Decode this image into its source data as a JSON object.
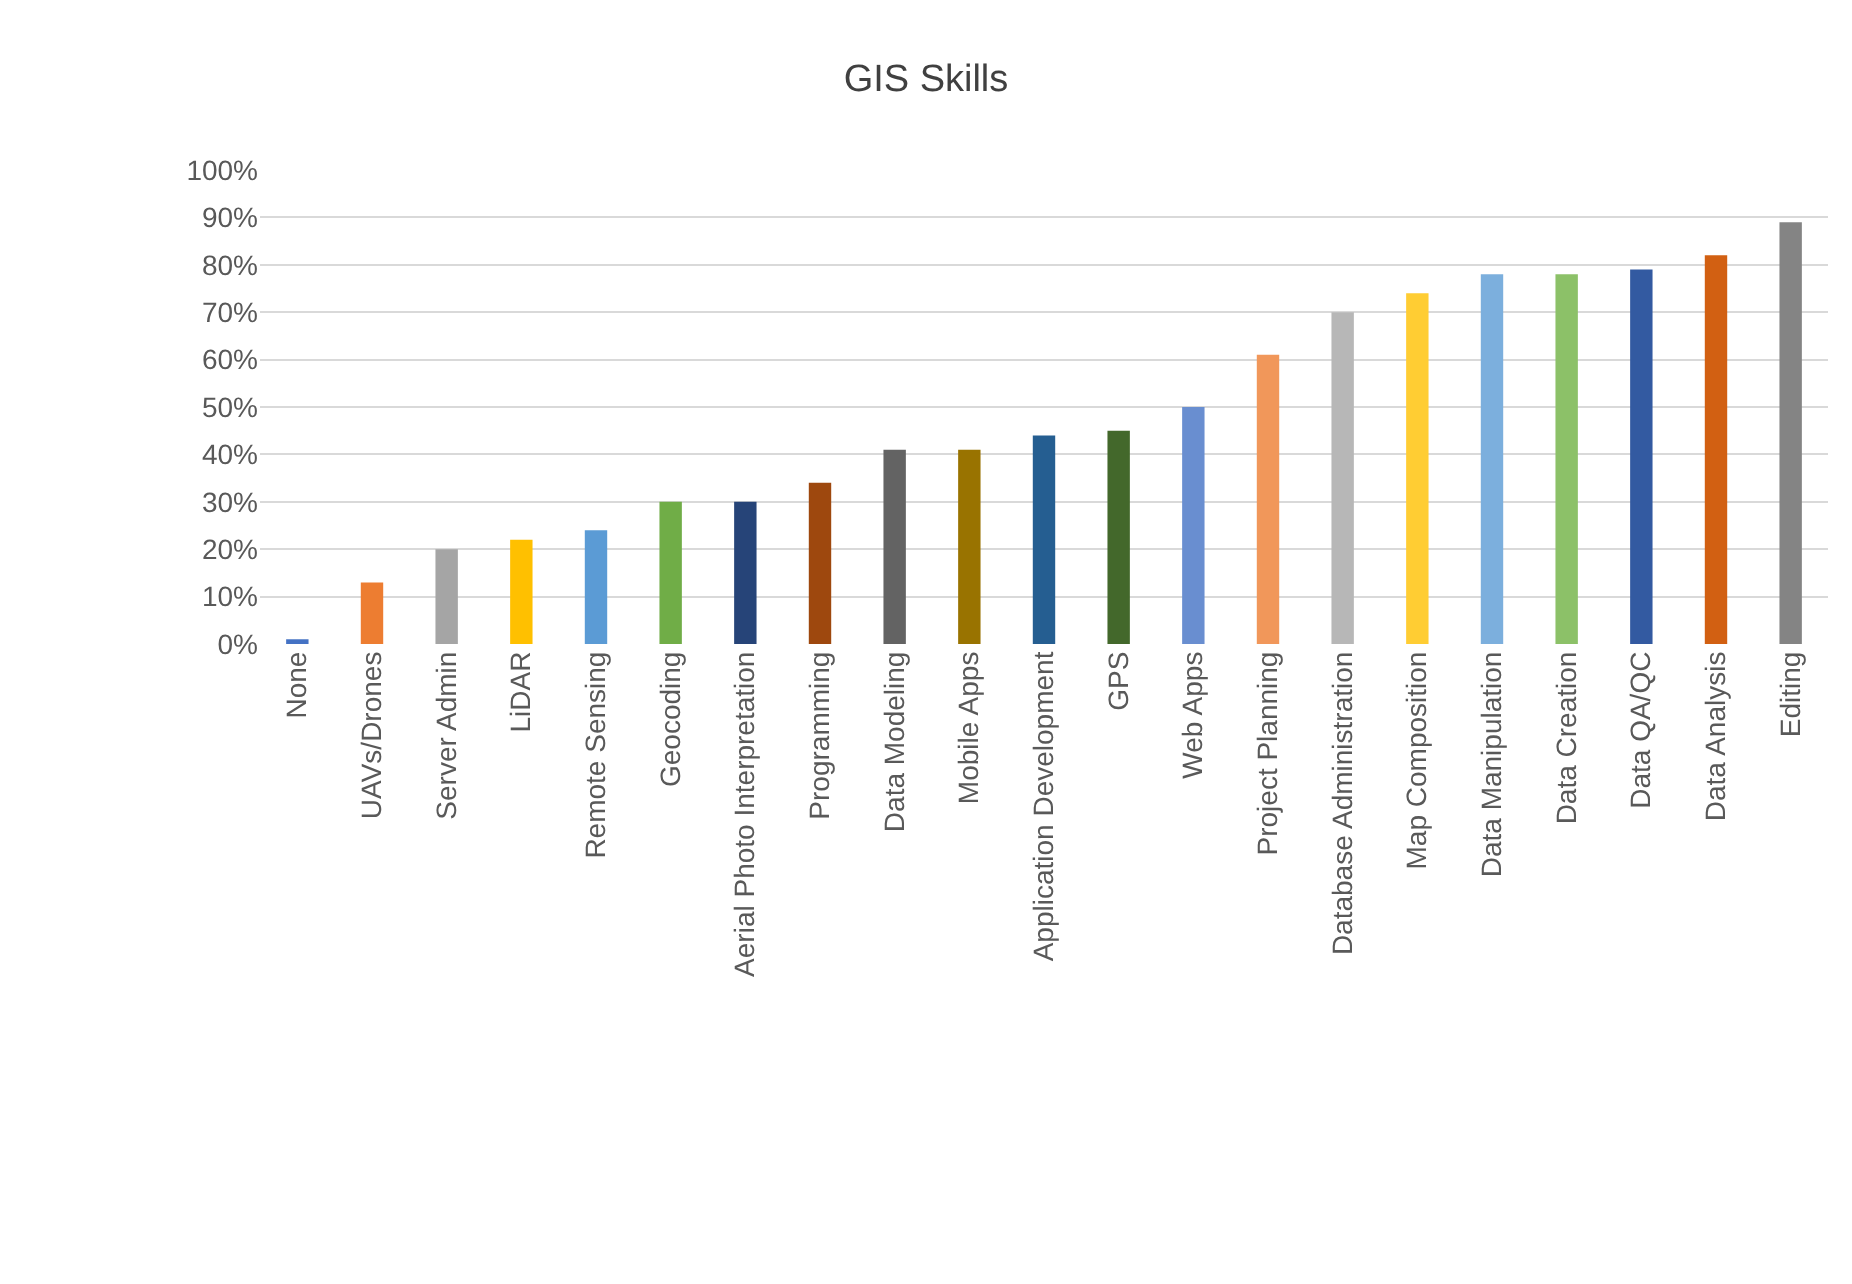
{
  "chart_data": {
    "type": "bar",
    "title": "GIS Skills",
    "categories": [
      "None",
      "UAVs/Drones",
      "Server Admin",
      "LiDAR",
      "Remote Sensing",
      "Geocoding",
      "Aerial Photo Interpretation",
      "Programming",
      "Data Modeling",
      "Mobile Apps",
      "Application Development",
      "GPS",
      "Web Apps",
      "Project Planning",
      "Database Administration",
      "Map Composition",
      "Data Manipulation",
      "Data Creation",
      "Data QA/QC",
      "Data Analysis",
      "Editing"
    ],
    "values": [
      1,
      13,
      20,
      22,
      24,
      30,
      30,
      34,
      41,
      41,
      44,
      45,
      50,
      61,
      70,
      74,
      78,
      78,
      79,
      82,
      89
    ],
    "colors": [
      "#4472c4",
      "#ed7d31",
      "#a5a5a5",
      "#ffc000",
      "#5b9bd5",
      "#70ad47",
      "#264478",
      "#9e480e",
      "#636363",
      "#997300",
      "#255e91",
      "#43682b",
      "#698ed0",
      "#f1975a",
      "#b7b7b7",
      "#ffcd33",
      "#7cafdd",
      "#8cc168",
      "#335aa1",
      "#d26012",
      "#848484"
    ],
    "ylim": [
      0,
      100
    ],
    "yticks": [
      {
        "value": 0,
        "label": "0%"
      },
      {
        "value": 10,
        "label": "10%"
      },
      {
        "value": 20,
        "label": "20%"
      },
      {
        "value": 30,
        "label": "30%"
      },
      {
        "value": 40,
        "label": "40%"
      },
      {
        "value": 50,
        "label": "50%"
      },
      {
        "value": 60,
        "label": "60%"
      },
      {
        "value": 70,
        "label": "70%"
      },
      {
        "value": 80,
        "label": "80%"
      },
      {
        "value": 90,
        "label": "90%"
      },
      {
        "value": 100,
        "label": "100%"
      }
    ],
    "grid": "y"
  }
}
